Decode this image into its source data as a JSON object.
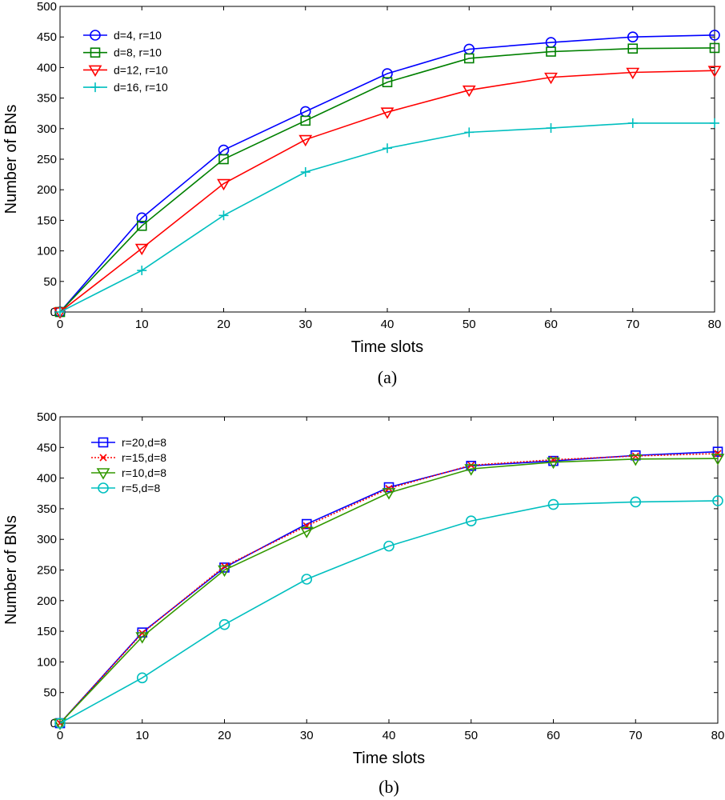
{
  "chart_data": [
    {
      "type": "line",
      "caption": "(a)",
      "title": "",
      "xlabel": "Time slots",
      "ylabel": "Number of BNs",
      "xlim": [
        0,
        80
      ],
      "ylim": [
        0,
        500
      ],
      "xticks": [
        0,
        10,
        20,
        30,
        40,
        50,
        60,
        70,
        80
      ],
      "yticks": [
        0,
        50,
        100,
        150,
        200,
        250,
        300,
        350,
        400,
        450,
        500
      ],
      "legend_position": "top-left",
      "x": [
        0,
        10,
        20,
        30,
        40,
        50,
        60,
        70,
        80
      ],
      "series": [
        {
          "name": "d=4, r=10",
          "color": "#0000ff",
          "marker": "circle",
          "values": [
            0,
            154,
            265,
            328,
            390,
            430,
            441,
            450,
            453
          ]
        },
        {
          "name": "d=8, r=10",
          "color": "#008000",
          "marker": "square",
          "values": [
            0,
            141,
            250,
            313,
            376,
            415,
            426,
            431,
            432
          ]
        },
        {
          "name": "d=12, r=10",
          "color": "#ff0000",
          "marker": "triangle-down",
          "values": [
            0,
            104,
            210,
            282,
            327,
            363,
            384,
            392,
            395
          ]
        },
        {
          "name": "d=16, r=10",
          "color": "#00bfbf",
          "marker": "plus",
          "values": [
            0,
            68,
            158,
            229,
            268,
            294,
            301,
            309,
            309
          ]
        }
      ]
    },
    {
      "type": "line",
      "caption": "(b)",
      "title": "",
      "xlabel": "Time slots",
      "ylabel": "Number of BNs",
      "xlim": [
        0,
        80
      ],
      "ylim": [
        0,
        500
      ],
      "xticks": [
        0,
        10,
        20,
        30,
        40,
        50,
        60,
        70,
        80
      ],
      "yticks": [
        0,
        50,
        100,
        150,
        200,
        250,
        300,
        350,
        400,
        450,
        500
      ],
      "legend_position": "top-left",
      "x": [
        0,
        10,
        20,
        30,
        40,
        50,
        60,
        70,
        80
      ],
      "series": [
        {
          "name": "r=20,d=8",
          "color": "#0000ff",
          "marker": "square",
          "dashed": false,
          "values": [
            0,
            148,
            254,
            325,
            385,
            420,
            428,
            437,
            443
          ]
        },
        {
          "name": "r=15,d=8",
          "color": "#ff0000",
          "marker": "x",
          "dashed": true,
          "values": [
            0,
            147,
            256,
            322,
            383,
            421,
            430,
            436,
            440
          ]
        },
        {
          "name": "r=10,d=8",
          "color": "#339900",
          "marker": "triangle-down",
          "dashed": false,
          "values": [
            0,
            141,
            250,
            313,
            376,
            415,
            426,
            431,
            432
          ]
        },
        {
          "name": "r=5,d=8",
          "color": "#00bfbf",
          "marker": "circle",
          "dashed": false,
          "values": [
            0,
            74,
            161,
            235,
            289,
            330,
            357,
            361,
            363
          ]
        }
      ]
    }
  ]
}
